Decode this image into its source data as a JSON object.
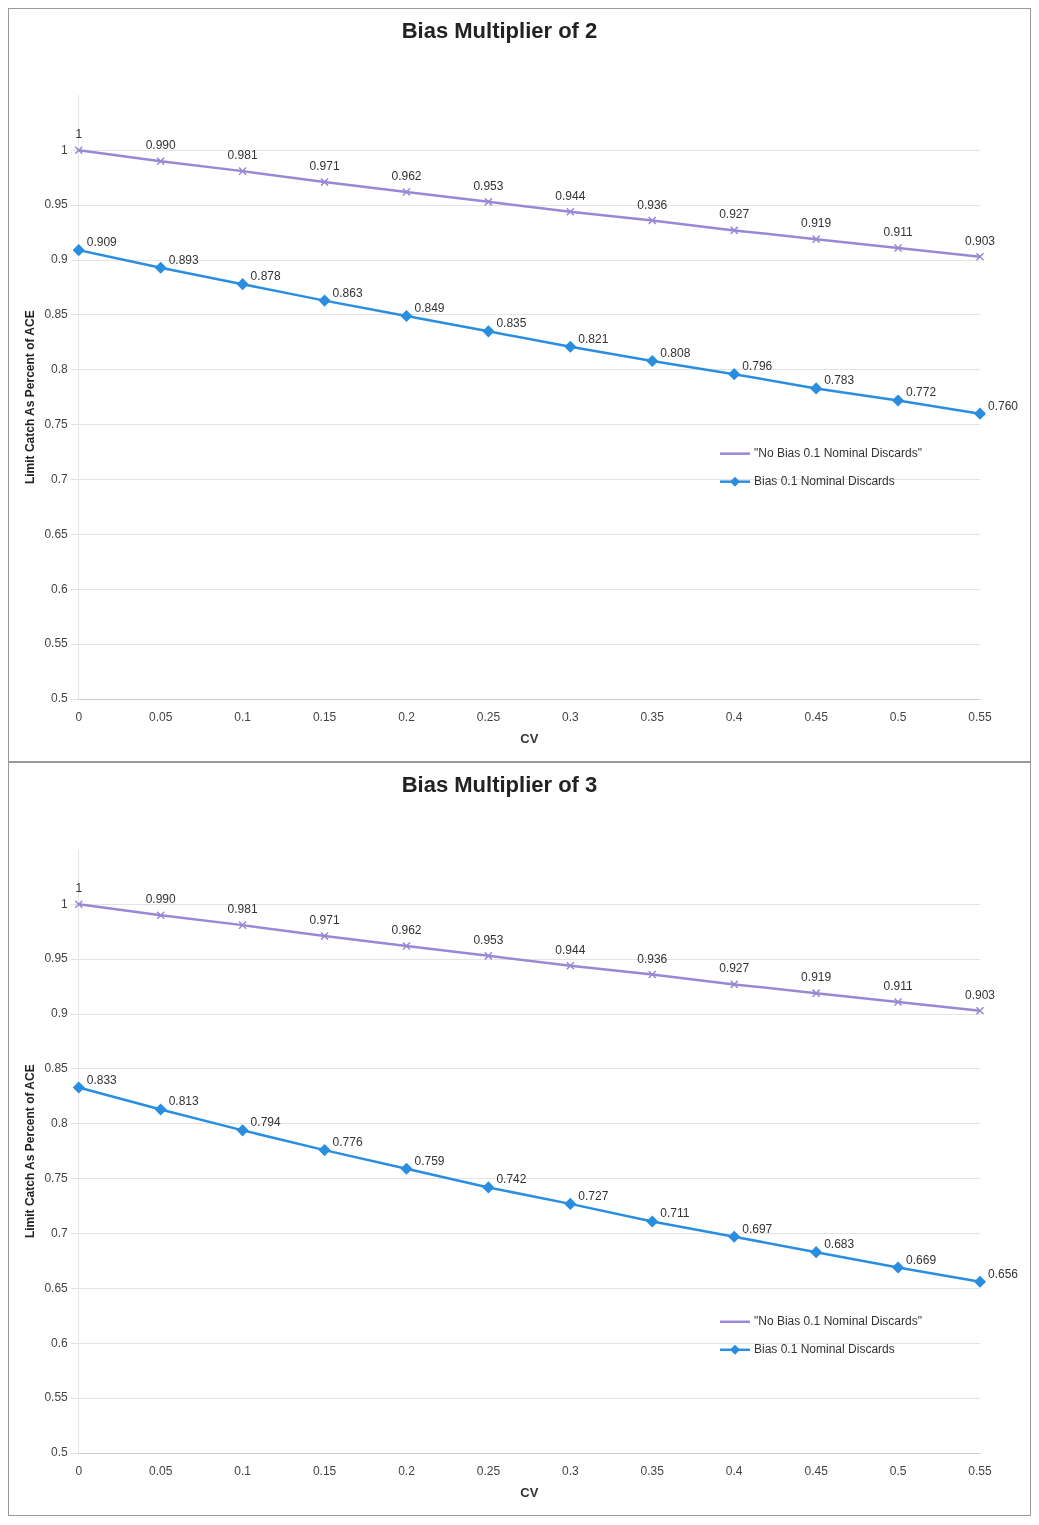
{
  "chart_data": [
    {
      "type": "line",
      "title": "Bias Multiplier of 2",
      "xlabel": "CV",
      "ylabel": "Limit Catch As Percent of ACE",
      "categories": [
        "0",
        "0.05",
        "0.1",
        "0.15",
        "0.2",
        "0.25",
        "0.3",
        "0.35",
        "0.4",
        "0.45",
        "0.5",
        "0.55"
      ],
      "ylim": [
        0.5,
        1.05
      ],
      "yticks": [
        0.5,
        0.55,
        0.6,
        0.65,
        0.7,
        0.75,
        0.8,
        0.85,
        0.9,
        0.95,
        1
      ],
      "grid": "y",
      "legend": "right",
      "series": [
        {
          "name": "\"No Bias 0.1 Nominal Discards\"",
          "color": "#9a88d4",
          "marker": "cross",
          "values": [
            1,
            0.99,
            0.981,
            0.971,
            0.962,
            0.953,
            0.944,
            0.936,
            0.927,
            0.919,
            0.911,
            0.903
          ],
          "value_labels": [
            "1",
            "0.990",
            "0.981",
            "0.971",
            "0.962",
            "0.953",
            "0.944",
            "0.936",
            "0.927",
            "0.919",
            "0.911",
            "0.903"
          ]
        },
        {
          "name": "Bias 0.1 Nominal Discards",
          "color": "#2a8ee0",
          "marker": "diamond",
          "values": [
            0.909,
            0.893,
            0.878,
            0.863,
            0.849,
            0.835,
            0.821,
            0.808,
            0.796,
            0.783,
            0.772,
            0.76
          ],
          "value_labels": [
            "0.909",
            "0.893",
            "0.878",
            "0.863",
            "0.849",
            "0.835",
            "0.821",
            "0.808",
            "0.796",
            "0.783",
            "0.772",
            "0.760"
          ]
        }
      ]
    },
    {
      "type": "line",
      "title": "Bias Multiplier of 3",
      "xlabel": "CV",
      "ylabel": "Limit Catch As Percent of ACE",
      "categories": [
        "0",
        "0.05",
        "0.1",
        "0.15",
        "0.2",
        "0.25",
        "0.3",
        "0.35",
        "0.4",
        "0.45",
        "0.5",
        "0.55"
      ],
      "ylim": [
        0.5,
        1.05
      ],
      "yticks": [
        0.5,
        0.55,
        0.6,
        0.65,
        0.7,
        0.75,
        0.8,
        0.85,
        0.9,
        0.95,
        1
      ],
      "grid": "y",
      "legend": "right",
      "series": [
        {
          "name": "\"No Bias 0.1 Nominal Discards\"",
          "color": "#9a88d4",
          "marker": "cross",
          "values": [
            1,
            0.99,
            0.981,
            0.971,
            0.962,
            0.953,
            0.944,
            0.936,
            0.927,
            0.919,
            0.911,
            0.903
          ],
          "value_labels": [
            "1",
            "0.990",
            "0.981",
            "0.971",
            "0.962",
            "0.953",
            "0.944",
            "0.936",
            "0.927",
            "0.919",
            "0.911",
            "0.903"
          ]
        },
        {
          "name": "Bias 0.1 Nominal Discards",
          "color": "#2a8ee0",
          "marker": "diamond",
          "values": [
            0.833,
            0.813,
            0.794,
            0.776,
            0.759,
            0.742,
            0.727,
            0.711,
            0.697,
            0.683,
            0.669,
            0.656
          ],
          "value_labels": [
            "0.833",
            "0.813",
            "0.794",
            "0.776",
            "0.759",
            "0.742",
            "0.727",
            "0.711",
            "0.697",
            "0.683",
            "0.669",
            "0.656"
          ]
        }
      ]
    }
  ]
}
